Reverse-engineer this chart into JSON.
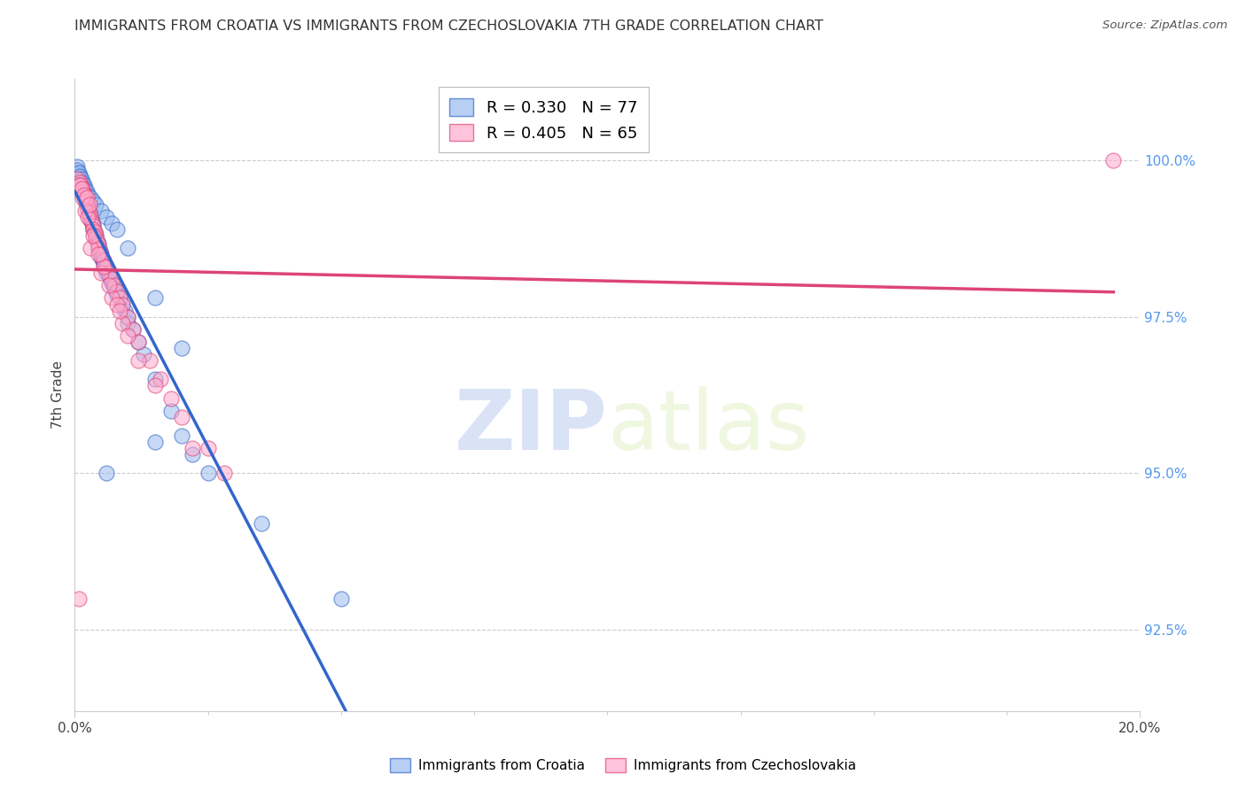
{
  "title": "IMMIGRANTS FROM CROATIA VS IMMIGRANTS FROM CZECHOSLOVAKIA 7TH GRADE CORRELATION CHART",
  "source": "Source: ZipAtlas.com",
  "ylabel_left": "7th Grade",
  "legend_label_blue": "Immigrants from Croatia",
  "legend_label_pink": "Immigrants from Czechoslovakia",
  "r_blue": 0.33,
  "n_blue": 77,
  "r_pink": 0.405,
  "n_pink": 65,
  "color_blue": "#99BBEE",
  "color_pink": "#FFAACC",
  "trendline_blue": "#3366CC",
  "trendline_pink": "#DD4477",
  "x_min": 0.0,
  "x_max": 20.0,
  "y_min": 91.2,
  "y_max": 101.3,
  "yticks_right": [
    100.0,
    97.5,
    95.0,
    92.5
  ],
  "ytick_labels_right": [
    "100.0%",
    "97.5%",
    "95.0%",
    "92.5%"
  ],
  "watermark_zip": "ZIP",
  "watermark_atlas": "atlas",
  "background_color": "#FFFFFF",
  "blue_x": [
    0.05,
    0.1,
    0.1,
    0.12,
    0.15,
    0.15,
    0.18,
    0.2,
    0.2,
    0.22,
    0.25,
    0.25,
    0.28,
    0.3,
    0.3,
    0.3,
    0.32,
    0.35,
    0.35,
    0.38,
    0.4,
    0.4,
    0.42,
    0.45,
    0.45,
    0.48,
    0.5,
    0.5,
    0.52,
    0.55,
    0.58,
    0.6,
    0.6,
    0.65,
    0.68,
    0.7,
    0.72,
    0.75,
    0.78,
    0.8,
    0.85,
    0.9,
    0.95,
    1.0,
    1.0,
    1.1,
    1.2,
    1.3,
    1.5,
    1.8,
    2.0,
    2.2,
    2.5,
    3.5,
    5.0,
    0.05,
    0.05,
    0.08,
    0.1,
    0.12,
    0.15,
    0.18,
    0.2,
    0.22,
    0.25,
    0.3,
    0.35,
    0.4,
    0.5,
    0.6,
    0.7,
    0.8,
    1.0,
    1.5,
    2.0,
    1.5,
    0.6
  ],
  "blue_y": [
    99.8,
    99.75,
    99.7,
    99.65,
    99.6,
    99.55,
    99.5,
    99.45,
    99.4,
    99.35,
    99.3,
    99.25,
    99.2,
    99.15,
    99.1,
    99.05,
    99.0,
    98.95,
    98.9,
    98.85,
    98.8,
    98.75,
    98.7,
    98.65,
    98.6,
    98.55,
    98.5,
    98.45,
    98.4,
    98.35,
    98.3,
    98.25,
    98.2,
    98.15,
    98.1,
    98.05,
    98.0,
    97.95,
    97.9,
    97.85,
    97.8,
    97.7,
    97.6,
    97.5,
    97.4,
    97.3,
    97.1,
    96.9,
    96.5,
    96.0,
    95.6,
    95.3,
    95.0,
    94.2,
    93.0,
    99.9,
    99.85,
    99.8,
    99.75,
    99.7,
    99.65,
    99.6,
    99.55,
    99.5,
    99.45,
    99.4,
    99.35,
    99.3,
    99.2,
    99.1,
    99.0,
    98.9,
    98.6,
    97.8,
    97.0,
    95.5,
    95.0
  ],
  "pink_x": [
    0.05,
    0.1,
    0.1,
    0.15,
    0.15,
    0.18,
    0.2,
    0.2,
    0.22,
    0.25,
    0.25,
    0.28,
    0.3,
    0.3,
    0.32,
    0.35,
    0.35,
    0.38,
    0.4,
    0.4,
    0.42,
    0.45,
    0.45,
    0.5,
    0.55,
    0.6,
    0.65,
    0.7,
    0.75,
    0.8,
    0.85,
    0.9,
    1.0,
    1.1,
    1.2,
    1.4,
    1.6,
    1.8,
    2.0,
    2.5,
    0.3,
    0.5,
    0.7,
    0.9,
    1.2,
    2.8,
    0.2,
    0.35,
    0.55,
    0.8,
    1.0,
    1.5,
    2.2,
    0.15,
    0.25,
    0.45,
    0.65,
    0.85,
    0.1,
    0.12,
    0.18,
    0.22,
    0.28,
    19.5,
    0.08
  ],
  "pink_y": [
    99.7,
    99.65,
    99.6,
    99.55,
    99.5,
    99.45,
    99.4,
    99.35,
    99.3,
    99.25,
    99.2,
    99.15,
    99.1,
    99.05,
    99.0,
    98.95,
    98.9,
    98.85,
    98.8,
    98.75,
    98.7,
    98.65,
    98.6,
    98.5,
    98.4,
    98.3,
    98.2,
    98.1,
    98.0,
    97.9,
    97.8,
    97.7,
    97.5,
    97.3,
    97.1,
    96.8,
    96.5,
    96.2,
    95.9,
    95.4,
    98.6,
    98.2,
    97.8,
    97.4,
    96.8,
    95.0,
    99.2,
    98.8,
    98.3,
    97.7,
    97.2,
    96.4,
    95.4,
    99.4,
    99.1,
    98.5,
    98.0,
    97.6,
    99.6,
    99.55,
    99.45,
    99.4,
    99.3,
    100.0,
    93.0
  ]
}
